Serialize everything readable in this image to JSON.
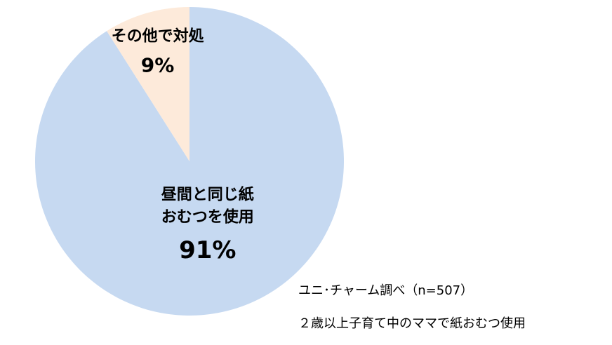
{
  "chart_data": {
    "type": "pie",
    "start_angle_deg": 0,
    "direction": "clockwise",
    "slices": [
      {
        "label_lines": [
          "昼間と同じ紙",
          "おむつを使用"
        ],
        "value": 91,
        "value_label": "91%",
        "color": "#c6d9f1"
      },
      {
        "label_lines": [
          "その他で対処"
        ],
        "value": 9,
        "value_label": "9%",
        "color": "#fdeada"
      }
    ],
    "title": "",
    "legend": "none"
  },
  "notes": {
    "source": "ユニ･チャーム調べ（n=507）",
    "population": "２歳以上子育て中のママで紙おむつ使用"
  }
}
